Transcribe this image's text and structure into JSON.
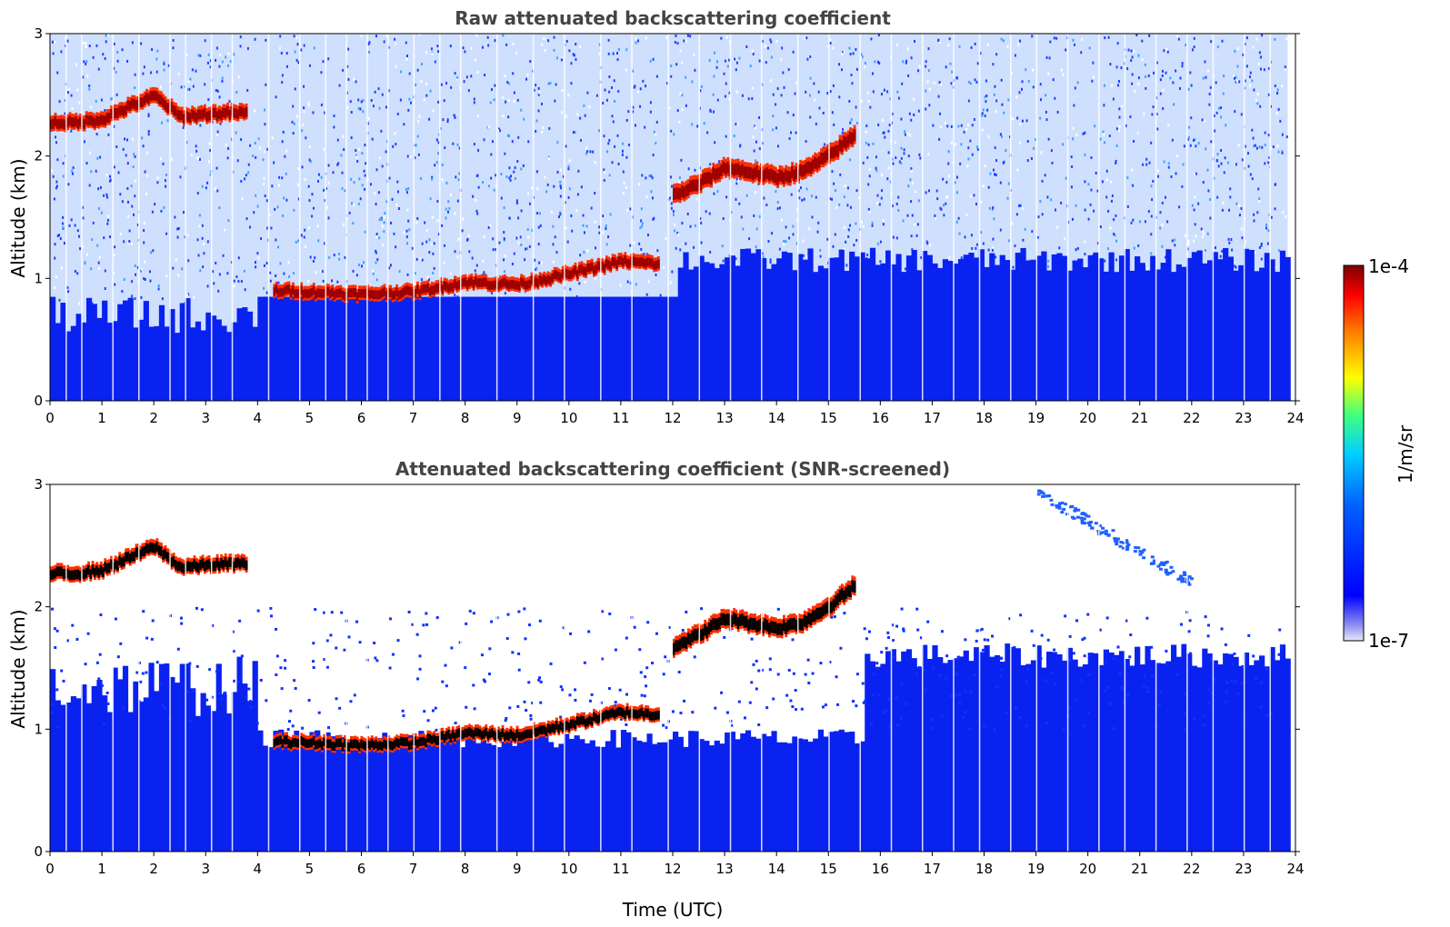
{
  "chart_data": [
    {
      "type": "heatmap",
      "title": "Raw attenuated backscattering coefficient",
      "xlabel": "",
      "ylabel": "Altitude (km)",
      "xlim": [
        0,
        24
      ],
      "ylim": [
        0,
        3
      ],
      "x_ticks": [
        0,
        1,
        2,
        3,
        4,
        5,
        6,
        7,
        8,
        9,
        10,
        11,
        12,
        13,
        14,
        15,
        16,
        17,
        18,
        19,
        20,
        21,
        22,
        23,
        24
      ],
      "y_ticks": [
        0,
        1,
        2,
        3
      ],
      "screened": false,
      "cloud_layer_km": [
        [
          0.0,
          2.25
        ],
        [
          0.5,
          2.25
        ],
        [
          1.0,
          2.28
        ],
        [
          1.5,
          2.38
        ],
        [
          2.0,
          2.47
        ],
        [
          2.5,
          2.3
        ],
        [
          3.0,
          2.32
        ],
        [
          3.5,
          2.33
        ],
        [
          3.8,
          2.33
        ]
      ],
      "low_cloud_km": [
        [
          4.3,
          0.88
        ],
        [
          5.0,
          0.87
        ],
        [
          6.0,
          0.85
        ],
        [
          7.0,
          0.87
        ],
        [
          8.0,
          0.95
        ],
        [
          9.0,
          0.93
        ],
        [
          10.0,
          1.02
        ],
        [
          11.0,
          1.12
        ],
        [
          11.7,
          1.1
        ],
        [
          12.0,
          1.65
        ],
        [
          12.5,
          1.75
        ],
        [
          13.0,
          1.88
        ],
        [
          14.0,
          1.8
        ],
        [
          14.5,
          1.85
        ],
        [
          15.0,
          1.98
        ],
        [
          15.5,
          2.15
        ]
      ]
    },
    {
      "type": "heatmap",
      "title": "Attenuated backscattering coefficient (SNR-screened)",
      "xlabel": "Time (UTC)",
      "ylabel": "Altitude (km)",
      "xlim": [
        0,
        24
      ],
      "ylim": [
        0,
        3
      ],
      "x_ticks": [
        0,
        1,
        2,
        3,
        4,
        5,
        6,
        7,
        8,
        9,
        10,
        11,
        12,
        13,
        14,
        15,
        16,
        17,
        18,
        19,
        20,
        21,
        22,
        23,
        24
      ],
      "y_ticks": [
        0,
        1,
        2,
        3
      ],
      "screened": true
    }
  ],
  "colorbar": {
    "label": "1/m/sr",
    "max_label": "1e-4",
    "min_label": "1e-7",
    "scale": "log",
    "colormap": "jet",
    "colors": [
      "#e8e8f8",
      "#0000ff",
      "#00c8ff",
      "#00e040",
      "#ffff00",
      "#ff8000",
      "#ff0000",
      "#800000"
    ]
  }
}
